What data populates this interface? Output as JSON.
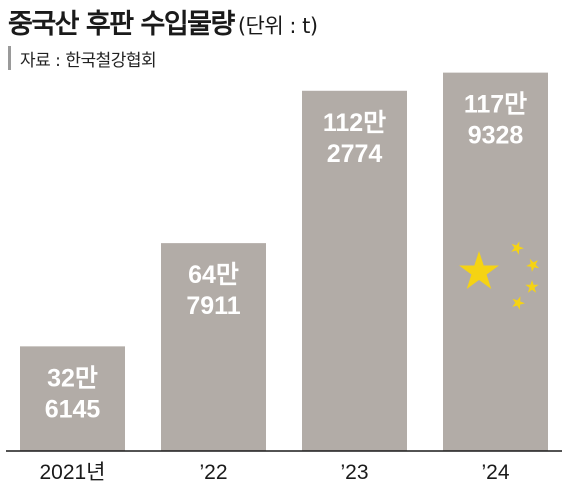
{
  "title": "중국산 후판 수입물량",
  "unit": "(단위 : t)",
  "source": "자료 : 한국철강협회",
  "colors": {
    "bar": "#b2aca7",
    "star": "#f5d313",
    "axis": "#1a1a1a",
    "text": "#1a1a1a",
    "bar_text": "#ffffff"
  },
  "chart_data": {
    "type": "bar",
    "title": "중국산 후판 수입물량",
    "unit": "t",
    "categories": [
      "2021년",
      "’22",
      "’23",
      "’24"
    ],
    "values": [
      326145,
      647911,
      1122774,
      1179328
    ],
    "data_labels": [
      [
        "32만",
        "6145"
      ],
      [
        "64만",
        "7911"
      ],
      [
        "112만",
        "2774"
      ],
      [
        "117만",
        "9328"
      ]
    ],
    "ylim": [
      0,
      1200000
    ],
    "grid": false,
    "legend": "none",
    "decoration": "china-flag-stars-on-last-bar"
  }
}
